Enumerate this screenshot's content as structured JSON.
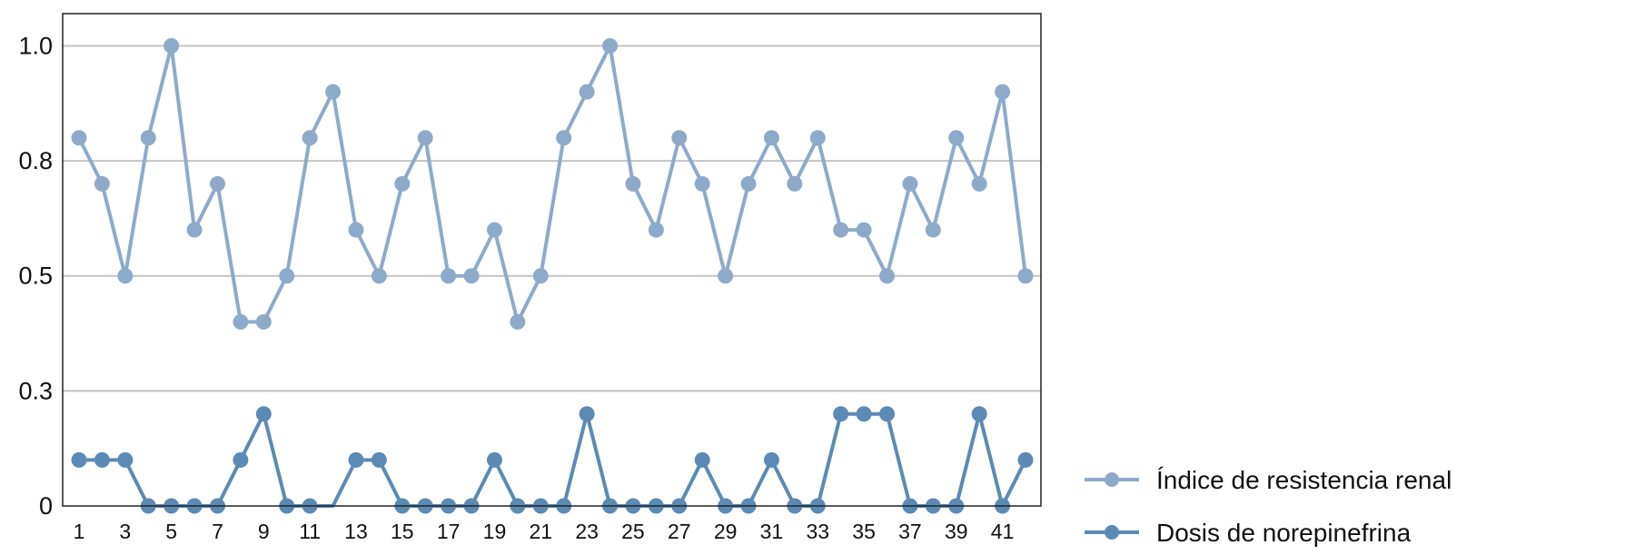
{
  "chart_data": {
    "type": "line",
    "title": "",
    "xlabel": "",
    "ylabel": "",
    "x": [
      1,
      2,
      3,
      4,
      5,
      6,
      7,
      8,
      9,
      10,
      11,
      12,
      13,
      14,
      15,
      16,
      17,
      18,
      19,
      20,
      21,
      22,
      23,
      24,
      25,
      26,
      27,
      28,
      29,
      30,
      31,
      32,
      33,
      34,
      35,
      36,
      37,
      38,
      39,
      40,
      41,
      42
    ],
    "x_tick_labels": [
      "1",
      "3",
      "5",
      "7",
      "9",
      "11",
      "13",
      "15",
      "17",
      "19",
      "21",
      "23",
      "25",
      "27",
      "29",
      "31",
      "33",
      "35",
      "37",
      "39",
      "41"
    ],
    "y_ticks": [
      0,
      0.25,
      0.5,
      0.75,
      1.0
    ],
    "y_tick_labels": [
      "0",
      "0.3",
      "0.5",
      "0.8",
      "1.0"
    ],
    "ylim": [
      0,
      1.07
    ],
    "grid": "horizontal",
    "legend_placement": "bottom-right outside",
    "series": [
      {
        "name": "Índice de resistencia renal",
        "color": "#8eaacb",
        "values": [
          0.8,
          0.7,
          0.5,
          0.8,
          1.0,
          0.6,
          0.7,
          0.4,
          0.4,
          0.5,
          0.8,
          0.9,
          0.6,
          0.5,
          0.7,
          0.8,
          0.5,
          0.5,
          0.6,
          0.4,
          0.5,
          0.8,
          0.9,
          1.0,
          0.7,
          0.6,
          0.8,
          0.7,
          0.5,
          0.7,
          0.8,
          0.7,
          0.8,
          0.6,
          0.6,
          0.5,
          0.7,
          0.6,
          0.8,
          0.7,
          0.9,
          0.5
        ],
        "hidden_markers": []
      },
      {
        "name": "Dosis de norepinefrina",
        "color": "#5b8ab5",
        "values": [
          0.1,
          0.1,
          0.1,
          0,
          0,
          0,
          0,
          0.1,
          0.2,
          0,
          0,
          0,
          0.1,
          0.1,
          0,
          0,
          0,
          0,
          0.1,
          0,
          0,
          0,
          0.2,
          0,
          0,
          0,
          0,
          0.1,
          0,
          0,
          0.1,
          0,
          0,
          0.2,
          0.2,
          0.2,
          0,
          0,
          0,
          0.2,
          0,
          0.1
        ],
        "hidden_markers": [
          12
        ]
      }
    ]
  }
}
